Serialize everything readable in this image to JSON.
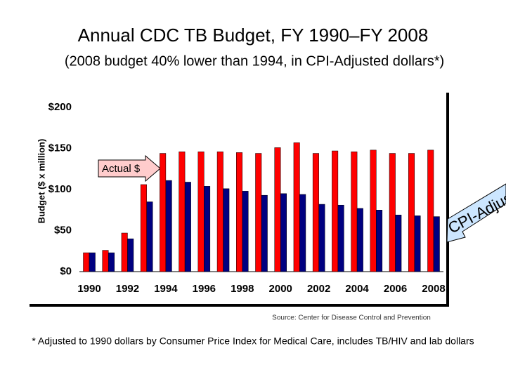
{
  "chart_data": {
    "type": "bar",
    "title": "Annual CDC TB Budget, FY 1990–FY 2008",
    "subtitle": "(2008 budget 40% lower than 1994, in CPI-Adjusted dollars*)",
    "y_label": "Budget ($ x million)",
    "source": "Source: Center for Disease Control and Prevention",
    "footnote": "* Adjusted to 1990 dollars by Consumer Price Index for Medical Care, includes TB/HIV and lab dollars",
    "categories": [
      "1990",
      null,
      "1992",
      null,
      "1994",
      null,
      "1996",
      null,
      "1998",
      null,
      "2000",
      null,
      "2002",
      null,
      "2004",
      null,
      "2006",
      null,
      "2008"
    ],
    "series": [
      {
        "name": "Actual $",
        "color": "#ff0000",
        "values": [
          23,
          26,
          47,
          106,
          144,
          146,
          146,
          146,
          145,
          144,
          151,
          157,
          144,
          147,
          146,
          148,
          144,
          144,
          148
        ]
      },
      {
        "name": "CPI-Adjusted",
        "color": "#000080",
        "values": [
          23,
          23,
          40,
          85,
          111,
          109,
          104,
          101,
          98,
          93,
          95,
          94,
          82,
          81,
          77,
          75,
          69,
          68,
          67
        ]
      }
    ],
    "ylim": [
      0,
      200
    ],
    "yticks": [
      {
        "value": 0,
        "label": "$0"
      },
      {
        "value": 50,
        "label": "$50"
      },
      {
        "value": 100,
        "label": "$100"
      },
      {
        "value": 150,
        "label": "$150"
      },
      {
        "value": 200,
        "label": "$200"
      }
    ]
  }
}
